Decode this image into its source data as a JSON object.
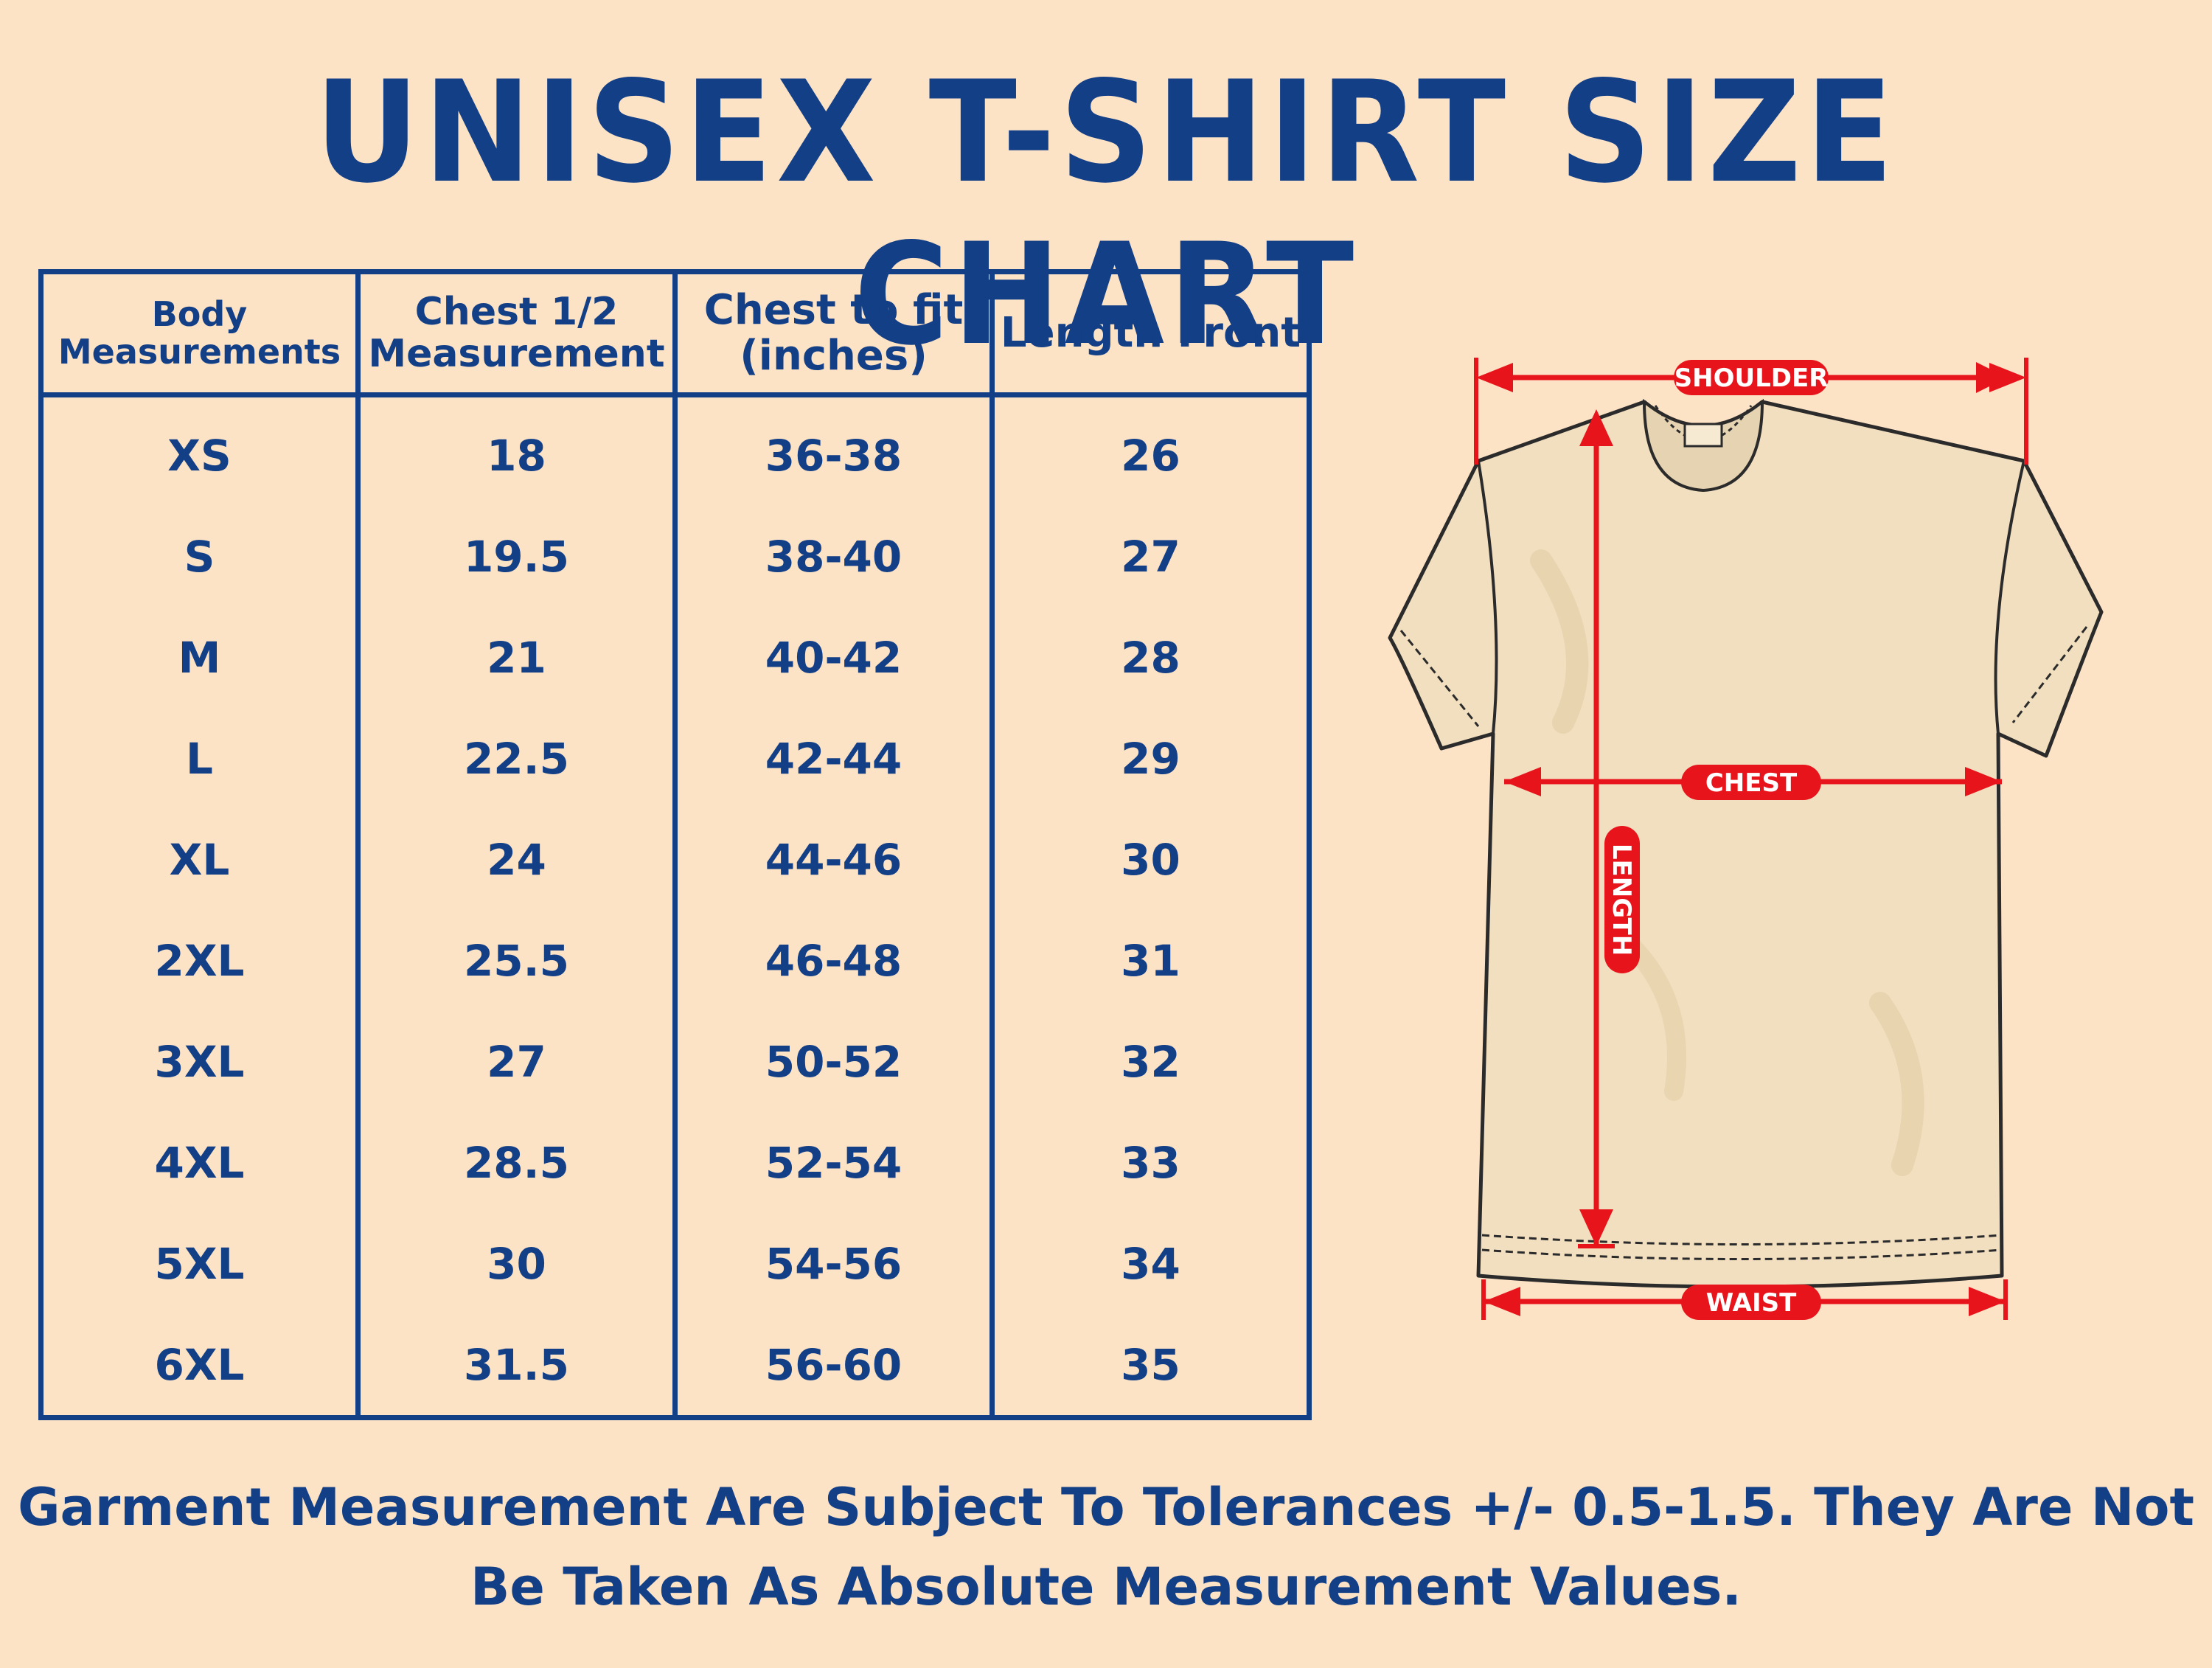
{
  "title": "UNISEX T-SHIRT SIZE CHART",
  "table": {
    "headers": [
      [
        "Body",
        "Measurements"
      ],
      [
        "Chest 1/2",
        "Measurement"
      ],
      [
        "Chest to fit",
        "(inches)"
      ],
      [
        "Length Front"
      ]
    ],
    "rows": [
      [
        "XS",
        "18",
        "36-38",
        "26"
      ],
      [
        "S",
        "19.5",
        "38-40",
        "27"
      ],
      [
        "M",
        "21",
        "40-42",
        "28"
      ],
      [
        "L",
        "22.5",
        "42-44",
        "29"
      ],
      [
        "XL",
        "24",
        "44-46",
        "30"
      ],
      [
        "2XL",
        "25.5",
        "46-48",
        "31"
      ],
      [
        "3XL",
        "27",
        "50-52",
        "32"
      ],
      [
        "4XL",
        "28.5",
        "52-54",
        "33"
      ],
      [
        "5XL",
        "30",
        "54-56",
        "34"
      ],
      [
        "6XL",
        "31.5",
        "56-60",
        "35"
      ]
    ]
  },
  "diagram": {
    "shoulder_label": "SHOULDER",
    "chest_label": "CHEST",
    "length_label": "LENGTH",
    "waist_label": "WAIST",
    "arrow_color": "#e8141b",
    "outline_color": "#2b2b2b",
    "shirt_fill": "#f2dfbf"
  },
  "footer": {
    "line1": "Garment Measurement Are Subject To Tolerances +/- 0.5-1.5. They Are Not",
    "line2": "Be Taken As Absolute Measurement Values."
  }
}
